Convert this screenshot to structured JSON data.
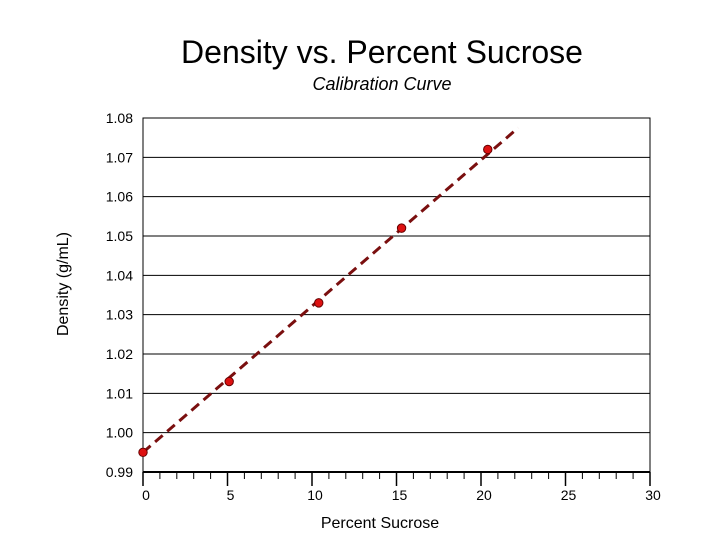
{
  "chart_data": {
    "type": "scatter",
    "title": "Density vs. Percent Sucrose",
    "subtitle": "Calibration Curve",
    "xlabel": "Percent Sucrose",
    "ylabel": "Density (g/mL)",
    "xlim": [
      0,
      30
    ],
    "ylim": [
      0.99,
      1.08
    ],
    "xticks": [
      0,
      5,
      10,
      15,
      20,
      25,
      30
    ],
    "xtick_labels": [
      "0",
      "5",
      "10",
      "15",
      "20",
      "25",
      "30"
    ],
    "yticks": [
      0.99,
      1.0,
      1.01,
      1.02,
      1.03,
      1.04,
      1.05,
      1.06,
      1.07,
      1.08
    ],
    "ytick_labels": [
      "0.99",
      "1.00",
      "1.01",
      "1.02",
      "1.03",
      "1.04",
      "1.05",
      "1.06",
      "1.07",
      "1.08"
    ],
    "grid": "horizontal",
    "series": [
      {
        "x": [
          0,
          5.1,
          10.4,
          15.3,
          20.4
        ],
        "y": [
          0.995,
          1.013,
          1.033,
          1.052,
          1.072
        ],
        "color": "#dd1111"
      }
    ],
    "trendline": {
      "x": [
        0,
        22.2
      ],
      "y": [
        0.995,
        1.0775
      ],
      "style": "dashed",
      "color": "#7a0f0f"
    }
  }
}
